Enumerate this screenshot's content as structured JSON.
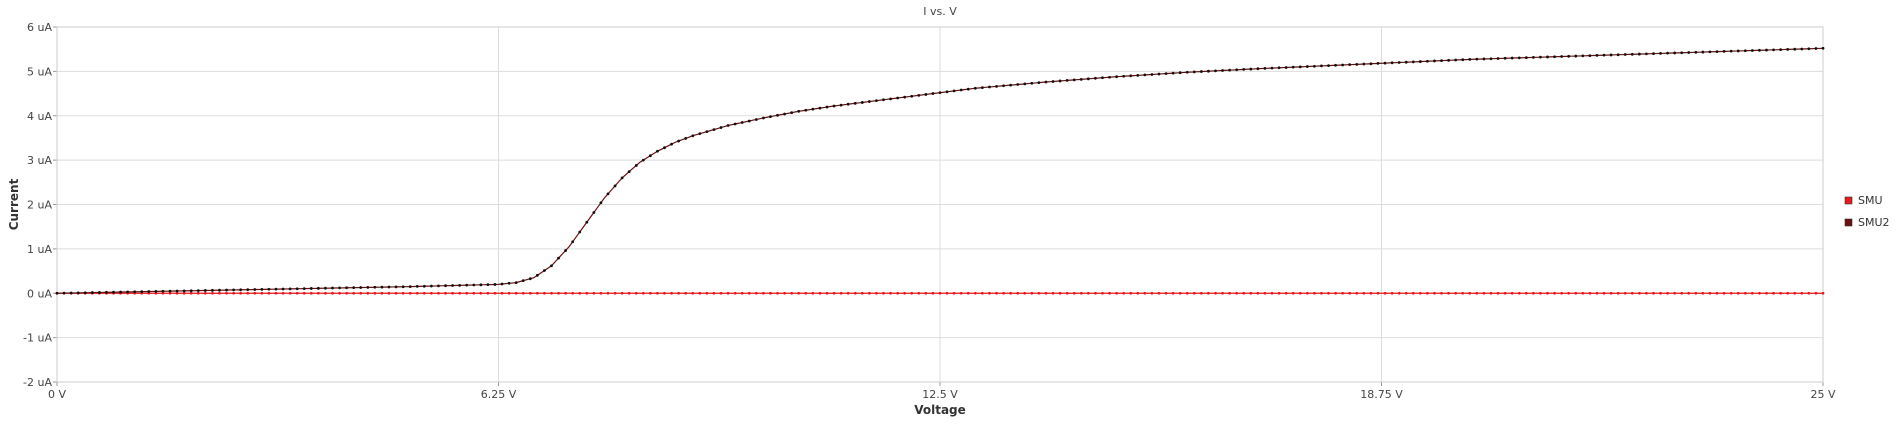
{
  "chart_data": {
    "type": "line",
    "title": "I vs. V",
    "xlabel": "Voltage",
    "ylabel": "Current",
    "xlim": [
      0,
      25
    ],
    "ylim": [
      -2,
      6
    ],
    "x_ticks": [
      0,
      6.25,
      12.5,
      18.75,
      25
    ],
    "x_tick_labels": [
      "0 V",
      "6.25 V",
      "12.5 V",
      "18.75 V",
      "25 V"
    ],
    "y_ticks": [
      -2,
      -1,
      0,
      1,
      2,
      3,
      4,
      5,
      6
    ],
    "y_tick_labels": [
      "-2 uA",
      "-1 uA",
      "0 uA",
      "1 uA",
      "2 uA",
      "3 uA",
      "4 uA",
      "5 uA",
      "6 uA"
    ],
    "grid": true,
    "legend_position": "right",
    "x_units": "V",
    "y_units": "uA",
    "series": [
      {
        "name": "SMU",
        "color": "#e8191e",
        "marker_color": "#e8191e",
        "x": [
          0,
          25
        ],
        "y": [
          0,
          0
        ]
      },
      {
        "name": "SMU2",
        "color": "#6b0f0f",
        "marker_color": "#111111",
        "x": [
          0,
          1,
          2,
          3,
          4,
          5,
          5.5,
          6,
          6.25,
          6.5,
          6.75,
          7,
          7.25,
          7.5,
          7.75,
          8,
          8.25,
          8.5,
          8.75,
          9,
          9.5,
          10,
          10.5,
          11,
          11.5,
          12,
          12.5,
          13,
          14,
          15,
          16,
          17,
          18,
          19,
          20,
          21,
          22,
          23,
          24,
          25
        ],
        "y": [
          0,
          0.03,
          0.06,
          0.09,
          0.12,
          0.15,
          0.17,
          0.19,
          0.2,
          0.24,
          0.35,
          0.62,
          1.05,
          1.6,
          2.15,
          2.6,
          2.95,
          3.2,
          3.4,
          3.55,
          3.78,
          3.95,
          4.1,
          4.22,
          4.32,
          4.42,
          4.52,
          4.62,
          4.76,
          4.88,
          4.98,
          5.06,
          5.13,
          5.2,
          5.27,
          5.32,
          5.37,
          5.42,
          5.47,
          5.52
        ]
      }
    ]
  }
}
